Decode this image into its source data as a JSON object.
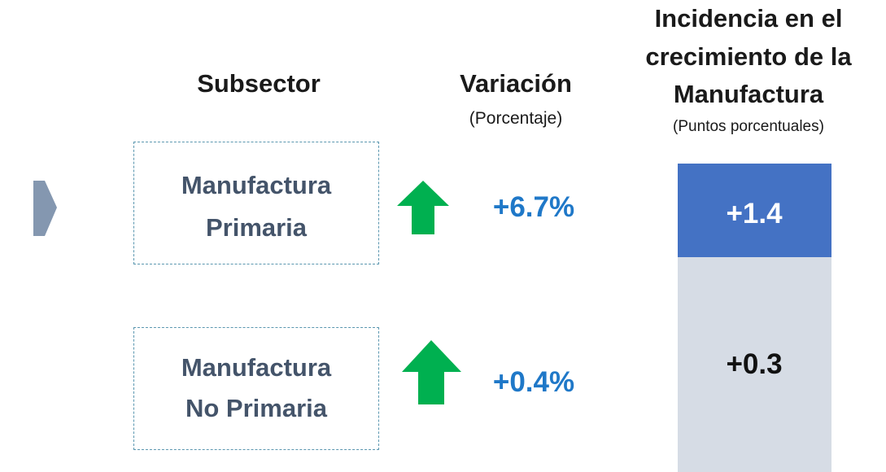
{
  "header": {
    "subsector": "Subsector",
    "variation": {
      "title": "Variación",
      "subtitle": "(Porcentaje)"
    },
    "incidence": {
      "title_lines": [
        "Incidencia en el",
        "crecimiento de la",
        "Manufactura"
      ],
      "subtitle": "(Puntos porcentuales)"
    }
  },
  "rows": [
    {
      "name_lines": [
        "Manufactura",
        "Primaria"
      ],
      "variation": "+6.7%",
      "incidence": "+1.4"
    },
    {
      "name_lines": [
        "Manufactura",
        "No Primaria"
      ],
      "variation": "+0.4%",
      "incidence": "+0.3"
    }
  ]
}
